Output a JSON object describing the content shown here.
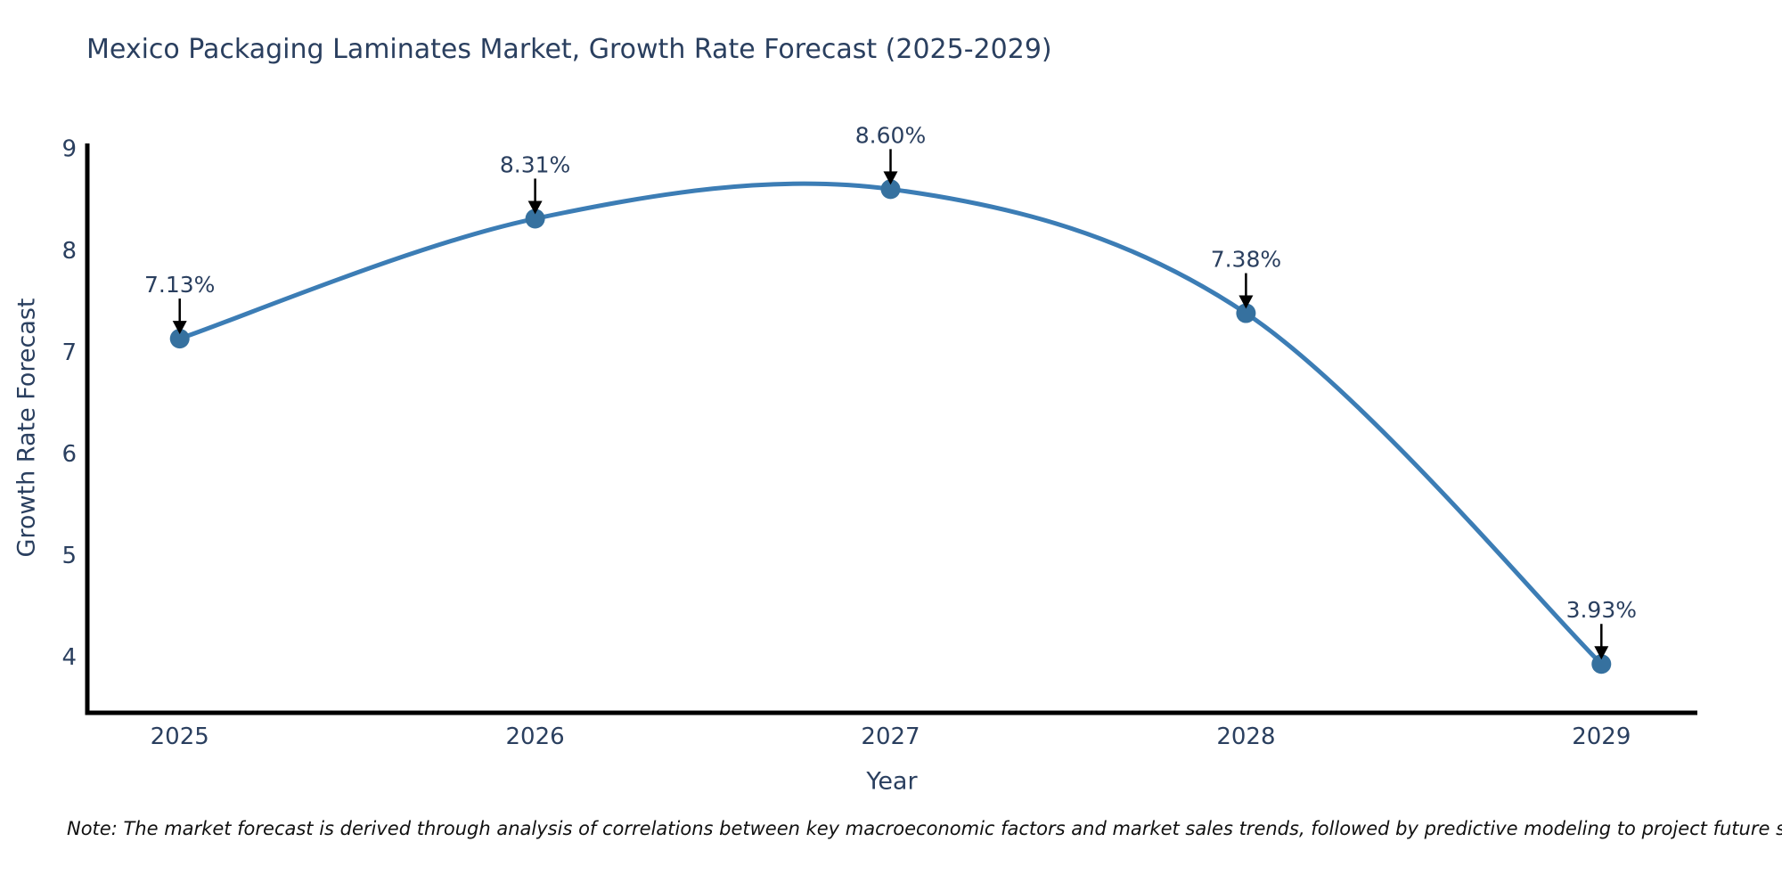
{
  "chart_data": {
    "type": "line",
    "title": "Mexico Packaging Laminates Market, Growth Rate Forecast (2025-2029)",
    "xlabel": "Year",
    "ylabel": "Growth Rate Forecast",
    "x": [
      2025,
      2026,
      2027,
      2028,
      2029
    ],
    "series": [
      {
        "name": "Growth Rate Forecast",
        "values": [
          7.13,
          8.31,
          8.6,
          7.38,
          3.93
        ],
        "point_labels": [
          "7.13%",
          "8.31%",
          "8.60%",
          "7.38%",
          "3.93%"
        ]
      }
    ],
    "x_tick_labels": [
      "2025",
      "2026",
      "2027",
      "2028",
      "2029"
    ],
    "y_tick_values": [
      4,
      5,
      6,
      7,
      8,
      9
    ],
    "xlim": [
      2024.74,
      2029.27
    ],
    "ylim": [
      3.45,
      9.05
    ],
    "line_shape": "spline",
    "grid": false,
    "legend": false,
    "annotations_have_arrows": true,
    "colors": {
      "line": "#3c7db5",
      "marker": "#36719f",
      "axis_line": "#000000",
      "text": "#2a3f5f",
      "arrow": "#000000",
      "background": "#ffffff"
    }
  },
  "footnote": "Note: The market forecast is derived through analysis of correlations between key macroeconomic factors and market sales trends, followed by predictive modeling to project future sales."
}
